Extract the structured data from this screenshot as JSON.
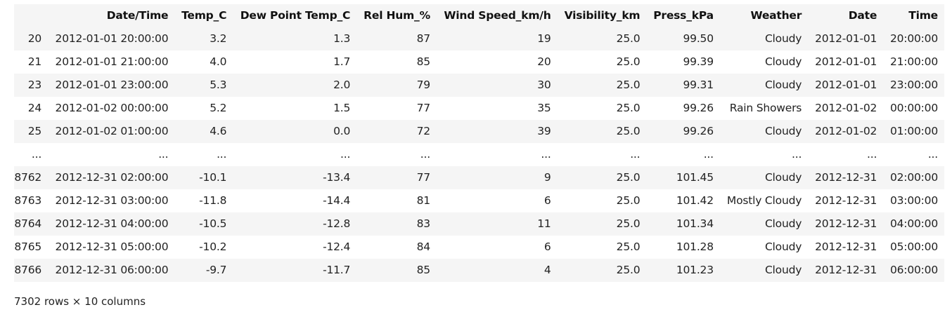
{
  "table": {
    "index_header": "",
    "columns": [
      "Date/Time",
      "Temp_C",
      "Dew Point Temp_C",
      "Rel Hum_%",
      "Wind Speed_km/h",
      "Visibility_km",
      "Press_kPa",
      "Weather",
      "Date",
      "Time"
    ],
    "rows": [
      {
        "index": "20",
        "cells": [
          "2012-01-01 20:00:00",
          "3.2",
          "1.3",
          "87",
          "19",
          "25.0",
          "99.50",
          "Cloudy",
          "2012-01-01",
          "20:00:00"
        ]
      },
      {
        "index": "21",
        "cells": [
          "2012-01-01 21:00:00",
          "4.0",
          "1.7",
          "85",
          "20",
          "25.0",
          "99.39",
          "Cloudy",
          "2012-01-01",
          "21:00:00"
        ]
      },
      {
        "index": "23",
        "cells": [
          "2012-01-01 23:00:00",
          "5.3",
          "2.0",
          "79",
          "30",
          "25.0",
          "99.31",
          "Cloudy",
          "2012-01-01",
          "23:00:00"
        ]
      },
      {
        "index": "24",
        "cells": [
          "2012-01-02 00:00:00",
          "5.2",
          "1.5",
          "77",
          "35",
          "25.0",
          "99.26",
          "Rain Showers",
          "2012-01-02",
          "00:00:00"
        ]
      },
      {
        "index": "25",
        "cells": [
          "2012-01-02 01:00:00",
          "4.6",
          "0.0",
          "72",
          "39",
          "25.0",
          "99.26",
          "Cloudy",
          "2012-01-02",
          "01:00:00"
        ]
      },
      {
        "index": "...",
        "cells": [
          "...",
          "...",
          "...",
          "...",
          "...",
          "...",
          "...",
          "...",
          "...",
          "..."
        ]
      },
      {
        "index": "8762",
        "cells": [
          "2012-12-31 02:00:00",
          "-10.1",
          "-13.4",
          "77",
          "9",
          "25.0",
          "101.45",
          "Cloudy",
          "2012-12-31",
          "02:00:00"
        ]
      },
      {
        "index": "8763",
        "cells": [
          "2012-12-31 03:00:00",
          "-11.8",
          "-14.4",
          "81",
          "6",
          "25.0",
          "101.42",
          "Mostly Cloudy",
          "2012-12-31",
          "03:00:00"
        ]
      },
      {
        "index": "8764",
        "cells": [
          "2012-12-31 04:00:00",
          "-10.5",
          "-12.8",
          "83",
          "11",
          "25.0",
          "101.34",
          "Cloudy",
          "2012-12-31",
          "04:00:00"
        ]
      },
      {
        "index": "8765",
        "cells": [
          "2012-12-31 05:00:00",
          "-10.2",
          "-12.4",
          "84",
          "6",
          "25.0",
          "101.28",
          "Cloudy",
          "2012-12-31",
          "05:00:00"
        ]
      },
      {
        "index": "8766",
        "cells": [
          "2012-12-31 06:00:00",
          "-9.7",
          "-11.7",
          "85",
          "4",
          "25.0",
          "101.23",
          "Cloudy",
          "2012-12-31",
          "06:00:00"
        ]
      }
    ]
  },
  "summary": "7302 rows × 10 columns"
}
